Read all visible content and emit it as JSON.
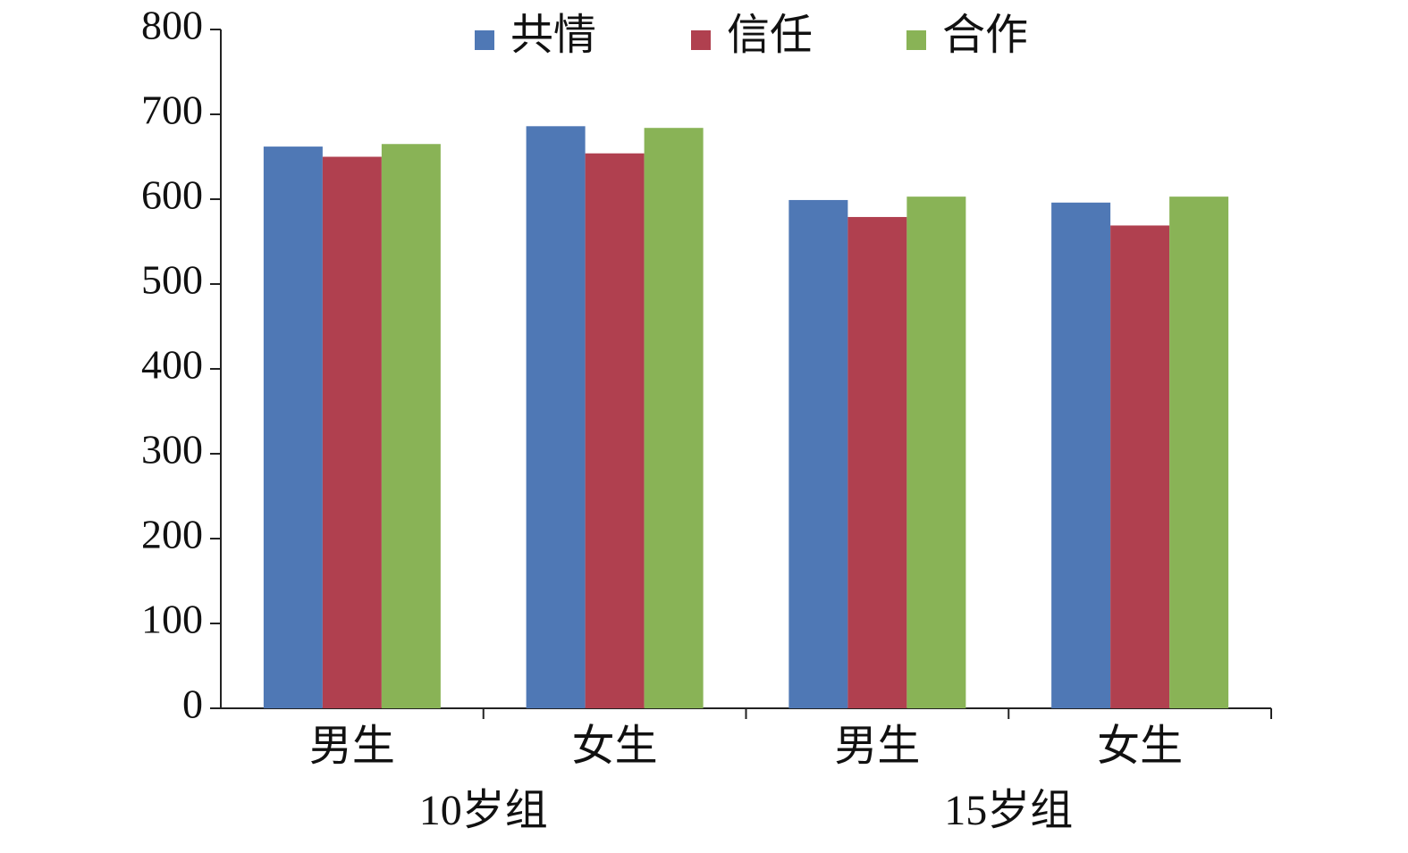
{
  "chart_data": {
    "type": "bar",
    "categories": [
      "男生",
      "女生",
      "男生",
      "女生"
    ],
    "groups": [
      "10岁组",
      "15岁组"
    ],
    "series": [
      {
        "name": "共情",
        "color": "#4f78b5",
        "values": [
          662,
          686,
          599,
          596
        ]
      },
      {
        "name": "信任",
        "color": "#b0404f",
        "values": [
          650,
          654,
          579,
          569
        ]
      },
      {
        "name": "合作",
        "color": "#89b356",
        "values": [
          665,
          684,
          603,
          603
        ]
      }
    ],
    "ylim": [
      0,
      800
    ],
    "yticks": [
      0,
      100,
      200,
      300,
      400,
      500,
      600,
      700,
      800
    ],
    "grid": false,
    "legend": "top"
  }
}
